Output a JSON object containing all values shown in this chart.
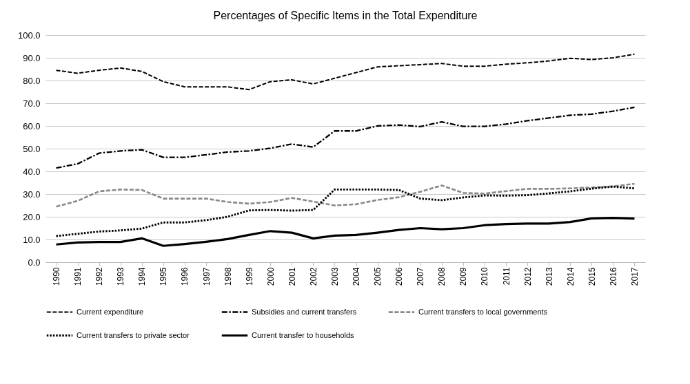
{
  "chart_data": {
    "type": "line",
    "title": "Percentages of Specific Items in the Total Expenditure",
    "categories": [
      "1990",
      "1991",
      "1992",
      "1993",
      "1994",
      "1995",
      "1996",
      "1997",
      "1998",
      "1999",
      "2000",
      "2001",
      "2002",
      "2003",
      "2004",
      "2005",
      "2006",
      "2007",
      "2008",
      "2009",
      "2010",
      "2011",
      "2012",
      "2013",
      "2014",
      "2015",
      "2016",
      "2017"
    ],
    "ylim": [
      0,
      100
    ],
    "yticks": [
      {
        "value": 0,
        "label": "0.0"
      },
      {
        "value": 10,
        "label": "10.0"
      },
      {
        "value": 20,
        "label": "20.0"
      },
      {
        "value": 30,
        "label": "30.0"
      },
      {
        "value": 40,
        "label": "40.0"
      },
      {
        "value": 50,
        "label": "50.0"
      },
      {
        "value": 60,
        "label": "60.0"
      },
      {
        "value": 70,
        "label": "70.0"
      },
      {
        "value": 80,
        "label": "80.0"
      },
      {
        "value": 90,
        "label": "90.0"
      },
      {
        "value": 100,
        "label": "100.0"
      }
    ],
    "grid": "y",
    "legend": "bottom",
    "series": [
      {
        "name": "Current expenditure",
        "color": "#000000",
        "line_style": "dashed",
        "values": [
          84.5,
          83.2,
          84.5,
          85.5,
          84,
          79.5,
          77.2,
          77.2,
          77.2,
          76,
          79.5,
          80.3,
          78.5,
          81,
          83.5,
          86,
          86.5,
          87,
          87.5,
          86.3,
          86.3,
          87.2,
          87.8,
          88.6,
          89.8,
          89.2,
          90,
          91.6
        ]
      },
      {
        "name": "Subsidies and current transfers",
        "color": "#000000",
        "line_style": "dashdot",
        "values": [
          41.5,
          43.3,
          48,
          49,
          49.5,
          46.2,
          46.2,
          47.3,
          48.5,
          49,
          50.2,
          52,
          50.7,
          57.8,
          57.8,
          60,
          60.4,
          59.7,
          61.8,
          59.8,
          59.8,
          60.8,
          62.3,
          63.5,
          64.7,
          65.2,
          66.5,
          68.2
        ]
      },
      {
        "name": "Current transfers to local governments",
        "color": "#888888",
        "line_style": "dashed",
        "values": [
          24.5,
          27,
          31.2,
          32,
          31.8,
          28,
          28,
          28,
          26.5,
          25.8,
          26.5,
          28.3,
          26.7,
          25,
          25.5,
          27.4,
          28.6,
          31,
          33.8,
          30.5,
          30.2,
          31.3,
          32.3,
          32.3,
          32.5,
          32.9,
          33.4,
          34.5
        ]
      },
      {
        "name": "Current transfers to private sector",
        "color": "#000000",
        "line_style": "dotted",
        "values": [
          11.5,
          12.5,
          13.5,
          14,
          14.8,
          17.5,
          17.5,
          18.5,
          20,
          22.8,
          23,
          22.7,
          23,
          32,
          32,
          32,
          31.8,
          28,
          27.3,
          28.5,
          29.4,
          29.3,
          29.5,
          30.3,
          31.2,
          32.4,
          33.3,
          32.5
        ]
      },
      {
        "name": "Current transfer to households",
        "color": "#000000",
        "line_style": "solid",
        "values": [
          7.8,
          8.7,
          8.9,
          8.9,
          10.5,
          7.2,
          8,
          9,
          10.2,
          12,
          13.7,
          13,
          10.5,
          11.7,
          12,
          13,
          14.2,
          15,
          14.5,
          15,
          16.3,
          16.8,
          17,
          17,
          17.7,
          19.3,
          19.5,
          19.2
        ]
      }
    ]
  }
}
